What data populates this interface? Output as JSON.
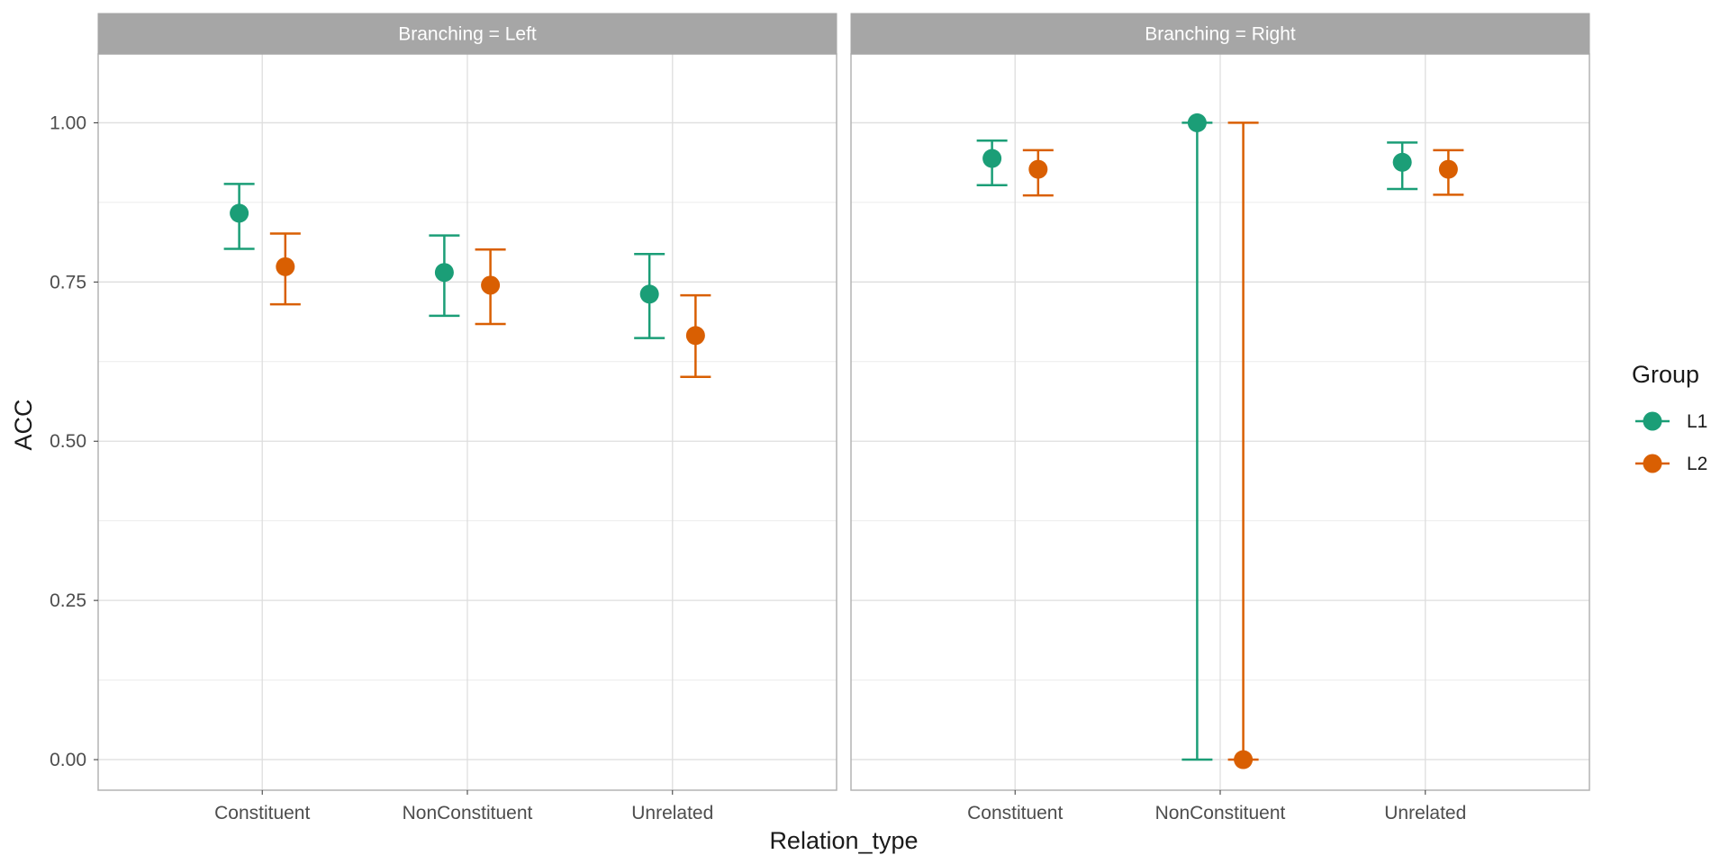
{
  "chart_data": {
    "type": "scatter",
    "facet_variable": "Branching",
    "panels": [
      {
        "strip_label": "Branching = Left",
        "categories": [
          "Constituent",
          "NonConstituent",
          "Unrelated"
        ],
        "series": [
          {
            "name": "L1",
            "mean": [
              0.858,
              0.765,
              0.731
            ],
            "lower": [
              0.802,
              0.697,
              0.662
            ],
            "upper": [
              0.904,
              0.823,
              0.794
            ]
          },
          {
            "name": "L2",
            "mean": [
              0.774,
              0.745,
              0.666
            ],
            "lower": [
              0.715,
              0.684,
              0.601
            ],
            "upper": [
              0.826,
              0.801,
              0.729
            ]
          }
        ]
      },
      {
        "strip_label": "Branching = Right",
        "categories": [
          "Constituent",
          "NonConstituent",
          "Unrelated"
        ],
        "series": [
          {
            "name": "L1",
            "mean": [
              0.944,
              1.0,
              0.938
            ],
            "lower": [
              0.902,
              0.0,
              0.896
            ],
            "upper": [
              0.972,
              1.0,
              0.969
            ]
          },
          {
            "name": "L2",
            "mean": [
              0.927,
              0.0,
              0.927
            ],
            "lower": [
              0.886,
              0.0,
              0.887
            ],
            "upper": [
              0.957,
              1.0,
              0.957
            ]
          }
        ]
      }
    ],
    "xlabel": "Relation_type",
    "ylabel": "ACC",
    "ylim": [
      -0.048,
      1.108
    ],
    "yticks": [
      0.0,
      0.25,
      0.5,
      0.75,
      1.0
    ],
    "ytick_labels": [
      "0.00",
      "0.25",
      "0.50",
      "0.75",
      "1.00"
    ],
    "grid": true,
    "legend": {
      "title": "Group",
      "position": "right",
      "entries": [
        {
          "label": "L1",
          "color": "#1b9e77"
        },
        {
          "label": "L2",
          "color": "#d95f02"
        }
      ]
    }
  }
}
